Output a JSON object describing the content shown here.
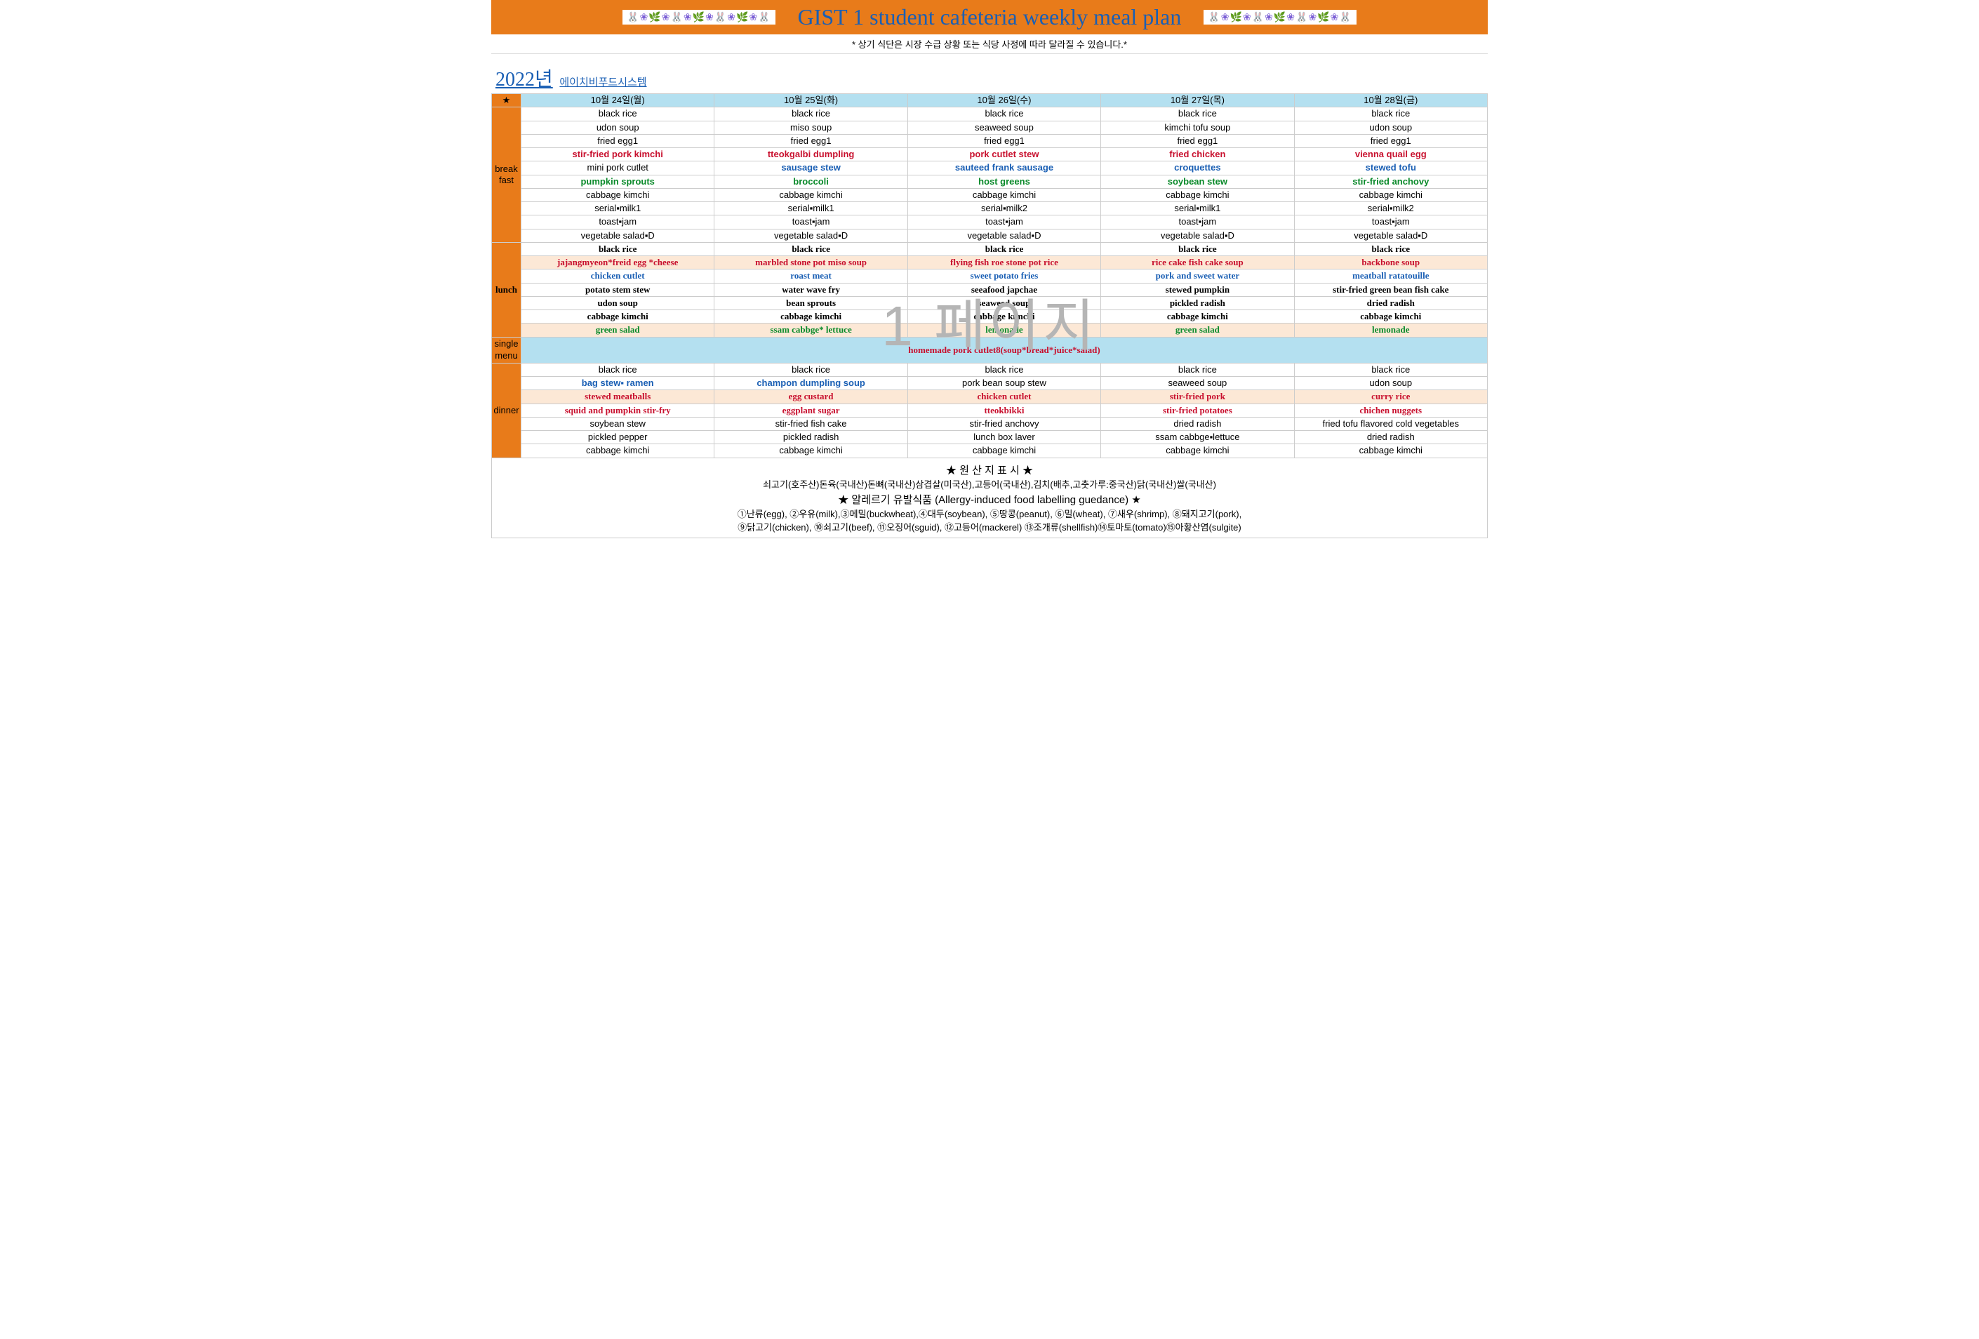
{
  "header": {
    "deco": "🐰❀🌿❀🐰❀🌿❀🐰❀🌿❀🐰",
    "title": "GIST 1 student cafeteria weekly meal plan"
  },
  "notice": "* 상기 식단은 시장 수급 상황 또는 식당 사정에 따라 달라질 수 있습니다.*",
  "year": "2022년",
  "subhead": "에이치비푸드시스템",
  "watermark": "1 페이지",
  "days": [
    "10월 24일(월)",
    "10월 25일(화)",
    "10월 26일(수)",
    "10월 27일(목)",
    "10월 28일(금)"
  ],
  "star": "★",
  "sections": {
    "breakfast_label": "break\nfast",
    "lunch_label": "lunch",
    "single_label": "single\nmenu",
    "dinner_label": "dinner"
  },
  "breakfast": [
    {
      "c": "black",
      "cells": [
        "black rice",
        "black rice",
        "black rice",
        "black rice",
        "black rice"
      ]
    },
    {
      "c": "black",
      "cells": [
        "udon soup",
        "miso soup",
        "seaweed soup",
        "kimchi tofu soup",
        "udon soup"
      ]
    },
    {
      "c": "black",
      "cells": [
        "fried egg1",
        "fried egg1",
        "fried egg1",
        "fried egg1",
        "fried egg1"
      ]
    },
    {
      "c": "red",
      "cells": [
        "stir-fried pork kimchi",
        "tteokgalbi dumpling",
        "pork cutlet stew",
        "fried chicken",
        "vienna quail egg"
      ]
    },
    {
      "c": "blue",
      "mix": [
        {
          "t": "mini pork cutlet",
          "c": "black"
        },
        {
          "t": "sausage stew",
          "c": "blue"
        },
        {
          "t": "sauteed frank sausage",
          "c": "blue"
        },
        {
          "t": "croquettes",
          "c": "blue"
        },
        {
          "t": "stewed tofu",
          "c": "blue"
        }
      ]
    },
    {
      "c": "green",
      "cells": [
        "pumpkin sprouts",
        "broccoli",
        "host greens",
        "soybean stew",
        "stir-fried anchovy"
      ]
    },
    {
      "c": "black",
      "cells": [
        "cabbage kimchi",
        "cabbage kimchi",
        "cabbage kimchi",
        "cabbage kimchi",
        "cabbage kimchi"
      ]
    },
    {
      "c": "black",
      "cells": [
        "serial▪milk1",
        "serial▪milk1",
        "serial▪milk2",
        "serial▪milk1",
        "serial▪milk2"
      ]
    },
    {
      "c": "black",
      "cells": [
        "toast▪jam",
        "toast▪jam",
        "toast▪jam",
        "toast▪jam",
        "toast▪jam"
      ]
    },
    {
      "c": "black",
      "cells": [
        "vegetable salad▪D",
        "vegetable salad▪D",
        "vegetable salad▪D",
        "vegetable salad▪D",
        "vegetable salad▪D"
      ]
    }
  ],
  "lunch": [
    {
      "c": "black",
      "bold": true,
      "cells": [
        "black rice",
        "black rice",
        "black rice",
        "black rice",
        "black rice"
      ]
    },
    {
      "c": "red",
      "bold": true,
      "peach": true,
      "tall": true,
      "cells": [
        "jajangmyeon*freid egg *cheese",
        "marbled stone pot miso soup",
        "flying fish roe stone pot rice",
        "rice cake fish cake soup",
        "backbone soup"
      ]
    },
    {
      "c": "blue",
      "bold": true,
      "tall": true,
      "cells": [
        "chicken cutlet",
        "roast meat",
        "sweet potato fries",
        "pork and sweet water",
        "meatball ratatouille"
      ]
    },
    {
      "c": "black",
      "bold": true,
      "tall": true,
      "cells": [
        "potato stem stew",
        "water wave fry",
        "seeafood japchae",
        "stewed pumpkin",
        "stir-fried green bean fish cake"
      ]
    },
    {
      "c": "black",
      "bold": true,
      "tall": true,
      "cells": [
        "udon soup",
        "bean sprouts",
        "seaweed soup",
        "pickled radish",
        "dried radish"
      ]
    },
    {
      "c": "black",
      "bold": true,
      "tall": true,
      "cells": [
        "cabbage kimchi",
        "cabbage kimchi",
        "cabbage kimchi",
        "cabbage kimchi",
        "cabbage kimchi"
      ]
    },
    {
      "c": "green",
      "bold": true,
      "peach": true,
      "tall": true,
      "cells": [
        "green salad",
        "ssam cabbge* lettuce",
        "lemonade",
        "green salad",
        "lemonade"
      ]
    }
  ],
  "single_menu": "homemade pork cutlet8(soup*bread*juice*salad)",
  "dinner": [
    {
      "c": "black",
      "cells": [
        "black rice",
        "black rice",
        "black rice",
        "black rice",
        "black rice"
      ]
    },
    {
      "mix": [
        {
          "t": "bag stew▪ ramen",
          "c": "blue"
        },
        {
          "t": "champon dumpling soup",
          "c": "blue"
        },
        {
          "t": "pork bean soup stew",
          "c": "black"
        },
        {
          "t": "seaweed soup",
          "c": "black"
        },
        {
          "t": "udon soup",
          "c": "black"
        }
      ]
    },
    {
      "c": "red",
      "peach": true,
      "tall": true,
      "bold": true,
      "cells": [
        "stewed meatballs",
        "egg custard",
        "chicken cutlet",
        "stir-fried pork",
        "curry rice"
      ]
    },
    {
      "c": "red",
      "bold": true,
      "cells": [
        "squid and pumpkin stir-fry",
        "eggplant sugar",
        "tteokbikki",
        "stir-fried potatoes",
        "chichen nuggets"
      ]
    },
    {
      "c": "black",
      "cells": [
        "soybean stew",
        "stir-fried fish cake",
        "stir-fried anchovy",
        "dried radish",
        "fried tofu flavored cold vegetables"
      ]
    },
    {
      "c": "black",
      "cells": [
        "pickled pepper",
        "pickled radish",
        "lunch box laver",
        "ssam cabbge▪lettuce",
        "dried radish"
      ]
    },
    {
      "c": "black",
      "cells": [
        "cabbage kimchi",
        "cabbage kimchi",
        "cabbage kimchi",
        "cabbage kimchi",
        "cabbage kimchi"
      ]
    }
  ],
  "footer": {
    "origin_hd": "★ 원 산 지 표 시 ★",
    "origin": "쇠고기(호주산)돈육(국내산)돈뼈(국내산)삼겹살(미국산),고등어(국내산),김치(배추,고춧가루:중국산)닭(국내산)쌀(국내산)",
    "allergy_hd": "★ 알레르기 유발식품 (Allergy-induced food labelling guedance) ★",
    "allergy1": "①난류(egg), ②우유(milk),③메밀(buckwheat),④대두(soybean), ⑤땅콩(peanut), ⑥밀(wheat), ⑦새우(shrimp), ⑧돼지고기(pork),",
    "allergy2": "⑨닭고기(chicken), ⑩쇠고기(beef), ⑪오징어(sguid), ⑫고등어(mackerel) ⑬조개류(shellfish)⑭토마토(tomato)⑮아황산염(sulgite)"
  }
}
